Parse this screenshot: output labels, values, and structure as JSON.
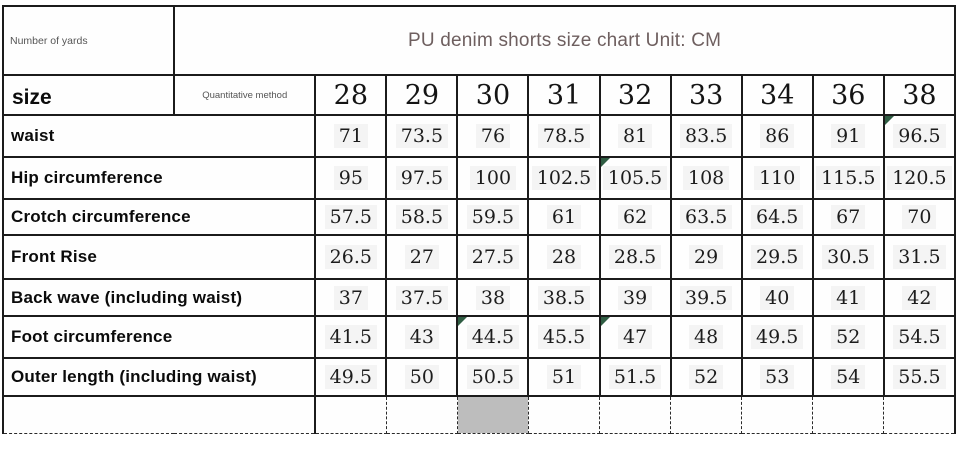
{
  "header": {
    "corner_label": "Number of yards",
    "title": "PU denim shorts size chart Unit: CM"
  },
  "size_row": {
    "label": "size",
    "method_label": "Quantitative method",
    "sizes": [
      "28",
      "29",
      "30",
      "31",
      "32",
      "33",
      "34",
      "36",
      "38"
    ]
  },
  "rows": [
    {
      "label": "waist",
      "values": [
        "71",
        "73.5",
        "76",
        "78.5",
        "81",
        "83.5",
        "86",
        "91",
        "96.5"
      ]
    },
    {
      "label": "Hip circumference",
      "values": [
        "95",
        "97.5",
        "100",
        "102.5",
        "105.5",
        "108",
        "110",
        "115.5",
        "120.5"
      ]
    },
    {
      "label": "Crotch circumference",
      "values": [
        "57.5",
        "58.5",
        "59.5",
        "61",
        "62",
        "63.5",
        "64.5",
        "67",
        "70"
      ]
    },
    {
      "label": "Front Rise",
      "values": [
        "26.5",
        "27",
        "27.5",
        "28",
        "28.5",
        "29",
        "29.5",
        "30.5",
        "31.5"
      ]
    },
    {
      "label": "Back wave (including waist)",
      "values": [
        "37",
        "37.5",
        "38",
        "38.5",
        "39",
        "39.5",
        "40",
        "41",
        "42"
      ]
    },
    {
      "label": "Foot circumference",
      "values": [
        "41.5",
        "43",
        "44.5",
        "45.5",
        "47",
        "48",
        "49.5",
        "52",
        "54.5"
      ]
    },
    {
      "label": "Outer length (including waist)",
      "values": [
        "49.5",
        "50",
        "50.5",
        "51",
        "51.5",
        "52",
        "53",
        "54",
        "55.5"
      ]
    }
  ],
  "unit": "CM",
  "icons": {
    "comment_marker": "corner-triangle"
  },
  "comment_markers": [
    {
      "row": "waist",
      "size": "38"
    },
    {
      "row": "Hip circumference",
      "size": "32"
    },
    {
      "row": "Foot circumference",
      "size": "30"
    },
    {
      "row": "Foot circumference",
      "size": "32"
    }
  ],
  "colors": {
    "title_text": "#6e5f5f",
    "border": "#1b1b1b",
    "comment_marker": "#2f5d43",
    "selected_cell": "#bdbdbd"
  }
}
